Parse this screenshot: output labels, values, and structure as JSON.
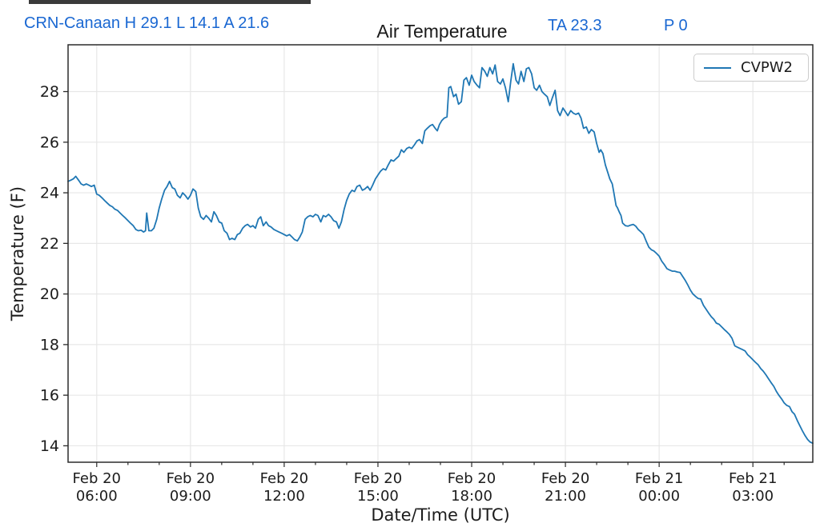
{
  "annotations": {
    "station_summary": "CRN-Canaan H 29.1 L 14.1 A 21.6",
    "ta": "TA 23.3",
    "p": "P 0"
  },
  "colors": {
    "line": "#1f77b4",
    "annotation_blue": "#1967d2",
    "grid": "#e7e7e7",
    "spine": "#2b2b2b",
    "text": "#1c1c1c"
  },
  "chart_data": {
    "type": "line",
    "title": "Air Temperature",
    "xlabel": "Date/Time (UTC)",
    "ylabel": "Temperature (F)",
    "grid": true,
    "legend_position": "upper right",
    "legend": [
      {
        "name": "CVPW2",
        "color": "#1f77b4"
      }
    ],
    "stats": {
      "station": "CRN-Canaan",
      "high_f": 29.1,
      "low_f": 14.1,
      "avg_f": 21.6,
      "ta_f": 23.3,
      "p": 0
    },
    "x_unit": "hours since Feb 20 00:00 UTC",
    "xlim": [
      5.083,
      28.917
    ],
    "ylim": [
      13.35,
      29.85
    ],
    "y_ticks": [
      14,
      16,
      18,
      20,
      22,
      24,
      26,
      28
    ],
    "x_ticks": [
      {
        "t": 6,
        "label": [
          "Feb 20",
          "06:00"
        ]
      },
      {
        "t": 9,
        "label": [
          "Feb 20",
          "09:00"
        ]
      },
      {
        "t": 12,
        "label": [
          "Feb 20",
          "12:00"
        ]
      },
      {
        "t": 15,
        "label": [
          "Feb 20",
          "15:00"
        ]
      },
      {
        "t": 18,
        "label": [
          "Feb 20",
          "18:00"
        ]
      },
      {
        "t": 21,
        "label": [
          "Feb 20",
          "21:00"
        ]
      },
      {
        "t": 24,
        "label": [
          "Feb 21",
          "00:00"
        ]
      },
      {
        "t": 27,
        "label": [
          "Feb 21",
          "03:00"
        ]
      }
    ],
    "x_minor_every_hours": 1,
    "series": [
      {
        "name": "CVPW2",
        "color": "#1f77b4",
        "points": [
          [
            5.083,
            24.45
          ],
          [
            5.17,
            24.5
          ],
          [
            5.25,
            24.55
          ],
          [
            5.33,
            24.65
          ],
          [
            5.42,
            24.5
          ],
          [
            5.5,
            24.35
          ],
          [
            5.58,
            24.3
          ],
          [
            5.67,
            24.35
          ],
          [
            5.75,
            24.3
          ],
          [
            5.83,
            24.25
          ],
          [
            5.92,
            24.3
          ],
          [
            6.0,
            23.95
          ],
          [
            6.08,
            23.9
          ],
          [
            6.17,
            23.8
          ],
          [
            6.25,
            23.7
          ],
          [
            6.33,
            23.6
          ],
          [
            6.42,
            23.5
          ],
          [
            6.5,
            23.45
          ],
          [
            6.58,
            23.35
          ],
          [
            6.67,
            23.3
          ],
          [
            6.75,
            23.2
          ],
          [
            6.83,
            23.1
          ],
          [
            6.92,
            23.0
          ],
          [
            7.0,
            22.9
          ],
          [
            7.08,
            22.8
          ],
          [
            7.17,
            22.7
          ],
          [
            7.25,
            22.55
          ],
          [
            7.33,
            22.5
          ],
          [
            7.42,
            22.52
          ],
          [
            7.5,
            22.45
          ],
          [
            7.56,
            22.5
          ],
          [
            7.6,
            23.2
          ],
          [
            7.67,
            22.5
          ],
          [
            7.75,
            22.5
          ],
          [
            7.83,
            22.6
          ],
          [
            7.92,
            22.95
          ],
          [
            8.0,
            23.4
          ],
          [
            8.08,
            23.75
          ],
          [
            8.17,
            24.1
          ],
          [
            8.25,
            24.25
          ],
          [
            8.33,
            24.45
          ],
          [
            8.42,
            24.2
          ],
          [
            8.5,
            24.15
          ],
          [
            8.58,
            23.9
          ],
          [
            8.67,
            23.8
          ],
          [
            8.75,
            24.0
          ],
          [
            8.83,
            23.9
          ],
          [
            8.92,
            23.75
          ],
          [
            9.0,
            23.9
          ],
          [
            9.08,
            24.15
          ],
          [
            9.17,
            24.05
          ],
          [
            9.25,
            23.4
          ],
          [
            9.33,
            23.05
          ],
          [
            9.42,
            22.95
          ],
          [
            9.5,
            23.1
          ],
          [
            9.58,
            23.0
          ],
          [
            9.67,
            22.85
          ],
          [
            9.75,
            23.25
          ],
          [
            9.83,
            23.1
          ],
          [
            9.92,
            22.85
          ],
          [
            10.0,
            22.8
          ],
          [
            10.08,
            22.5
          ],
          [
            10.17,
            22.4
          ],
          [
            10.25,
            22.15
          ],
          [
            10.33,
            22.2
          ],
          [
            10.42,
            22.15
          ],
          [
            10.5,
            22.35
          ],
          [
            10.58,
            22.4
          ],
          [
            10.67,
            22.6
          ],
          [
            10.75,
            22.7
          ],
          [
            10.83,
            22.75
          ],
          [
            10.92,
            22.65
          ],
          [
            11.0,
            22.7
          ],
          [
            11.08,
            22.6
          ],
          [
            11.17,
            22.95
          ],
          [
            11.25,
            23.05
          ],
          [
            11.33,
            22.7
          ],
          [
            11.42,
            22.85
          ],
          [
            11.5,
            22.7
          ],
          [
            11.58,
            22.65
          ],
          [
            11.67,
            22.55
          ],
          [
            11.75,
            22.5
          ],
          [
            11.83,
            22.45
          ],
          [
            11.92,
            22.4
          ],
          [
            12.0,
            22.35
          ],
          [
            12.08,
            22.3
          ],
          [
            12.17,
            22.35
          ],
          [
            12.25,
            22.25
          ],
          [
            12.33,
            22.15
          ],
          [
            12.42,
            22.1
          ],
          [
            12.5,
            22.25
          ],
          [
            12.58,
            22.45
          ],
          [
            12.67,
            22.95
          ],
          [
            12.75,
            23.05
          ],
          [
            12.83,
            23.1
          ],
          [
            12.92,
            23.05
          ],
          [
            13.0,
            23.15
          ],
          [
            13.08,
            23.1
          ],
          [
            13.17,
            22.85
          ],
          [
            13.25,
            23.1
          ],
          [
            13.33,
            23.05
          ],
          [
            13.42,
            23.15
          ],
          [
            13.5,
            23.05
          ],
          [
            13.58,
            22.9
          ],
          [
            13.67,
            22.85
          ],
          [
            13.75,
            22.6
          ],
          [
            13.83,
            22.85
          ],
          [
            13.92,
            23.35
          ],
          [
            14.0,
            23.7
          ],
          [
            14.08,
            23.95
          ],
          [
            14.17,
            24.1
          ],
          [
            14.25,
            24.05
          ],
          [
            14.33,
            24.25
          ],
          [
            14.42,
            24.3
          ],
          [
            14.5,
            24.1
          ],
          [
            14.58,
            24.15
          ],
          [
            14.67,
            24.25
          ],
          [
            14.75,
            24.1
          ],
          [
            14.83,
            24.3
          ],
          [
            14.92,
            24.55
          ],
          [
            15.0,
            24.7
          ],
          [
            15.08,
            24.85
          ],
          [
            15.17,
            24.95
          ],
          [
            15.25,
            24.9
          ],
          [
            15.33,
            25.1
          ],
          [
            15.42,
            25.3
          ],
          [
            15.5,
            25.25
          ],
          [
            15.58,
            25.35
          ],
          [
            15.67,
            25.45
          ],
          [
            15.75,
            25.7
          ],
          [
            15.83,
            25.6
          ],
          [
            15.92,
            25.75
          ],
          [
            16.0,
            25.8
          ],
          [
            16.08,
            25.75
          ],
          [
            16.17,
            25.9
          ],
          [
            16.25,
            26.05
          ],
          [
            16.33,
            26.1
          ],
          [
            16.42,
            25.95
          ],
          [
            16.5,
            26.45
          ],
          [
            16.58,
            26.55
          ],
          [
            16.67,
            26.65
          ],
          [
            16.75,
            26.7
          ],
          [
            16.83,
            26.55
          ],
          [
            16.9,
            26.45
          ],
          [
            16.97,
            26.7
          ],
          [
            17.04,
            26.85
          ],
          [
            17.12,
            26.95
          ],
          [
            17.21,
            27.0
          ],
          [
            17.27,
            28.15
          ],
          [
            17.33,
            28.2
          ],
          [
            17.42,
            27.8
          ],
          [
            17.5,
            27.9
          ],
          [
            17.58,
            27.5
          ],
          [
            17.67,
            27.6
          ],
          [
            17.75,
            28.45
          ],
          [
            17.83,
            28.55
          ],
          [
            17.92,
            28.25
          ],
          [
            18.0,
            28.65
          ],
          [
            18.08,
            28.4
          ],
          [
            18.17,
            28.25
          ],
          [
            18.25,
            28.15
          ],
          [
            18.33,
            28.95
          ],
          [
            18.42,
            28.8
          ],
          [
            18.5,
            28.6
          ],
          [
            18.58,
            28.95
          ],
          [
            18.67,
            28.7
          ],
          [
            18.75,
            29.05
          ],
          [
            18.83,
            28.4
          ],
          [
            18.92,
            28.3
          ],
          [
            19.0,
            28.5
          ],
          [
            19.08,
            28.15
          ],
          [
            19.17,
            27.6
          ],
          [
            19.25,
            28.4
          ],
          [
            19.33,
            29.1
          ],
          [
            19.42,
            28.45
          ],
          [
            19.5,
            28.3
          ],
          [
            19.58,
            28.8
          ],
          [
            19.67,
            28.4
          ],
          [
            19.75,
            28.9
          ],
          [
            19.83,
            28.95
          ],
          [
            19.92,
            28.7
          ],
          [
            20.0,
            28.15
          ],
          [
            20.08,
            28.05
          ],
          [
            20.17,
            28.25
          ],
          [
            20.25,
            28.0
          ],
          [
            20.33,
            27.9
          ],
          [
            20.42,
            27.8
          ],
          [
            20.5,
            27.45
          ],
          [
            20.58,
            27.75
          ],
          [
            20.67,
            28.05
          ],
          [
            20.75,
            27.25
          ],
          [
            20.83,
            27.05
          ],
          [
            20.92,
            27.35
          ],
          [
            21.0,
            27.2
          ],
          [
            21.08,
            27.05
          ],
          [
            21.17,
            27.25
          ],
          [
            21.25,
            27.15
          ],
          [
            21.33,
            27.1
          ],
          [
            21.42,
            27.15
          ],
          [
            21.5,
            26.95
          ],
          [
            21.58,
            26.55
          ],
          [
            21.67,
            26.6
          ],
          [
            21.75,
            26.35
          ],
          [
            21.83,
            26.5
          ],
          [
            21.92,
            26.4
          ],
          [
            22.0,
            25.95
          ],
          [
            22.08,
            25.6
          ],
          [
            22.13,
            25.7
          ],
          [
            22.2,
            25.55
          ],
          [
            22.28,
            25.1
          ],
          [
            22.37,
            24.75
          ],
          [
            22.42,
            24.55
          ],
          [
            22.5,
            24.35
          ],
          [
            22.55,
            24.0
          ],
          [
            22.62,
            23.5
          ],
          [
            22.67,
            23.4
          ],
          [
            22.72,
            23.25
          ],
          [
            22.78,
            23.1
          ],
          [
            22.83,
            22.8
          ],
          [
            22.92,
            22.7
          ],
          [
            23.0,
            22.68
          ],
          [
            23.08,
            22.72
          ],
          [
            23.17,
            22.75
          ],
          [
            23.25,
            22.68
          ],
          [
            23.33,
            22.55
          ],
          [
            23.42,
            22.45
          ],
          [
            23.5,
            22.35
          ],
          [
            23.58,
            22.1
          ],
          [
            23.67,
            21.85
          ],
          [
            23.75,
            21.75
          ],
          [
            23.83,
            21.7
          ],
          [
            23.92,
            21.6
          ],
          [
            24.0,
            21.5
          ],
          [
            24.08,
            21.3
          ],
          [
            24.17,
            21.15
          ],
          [
            24.25,
            21.0
          ],
          [
            24.33,
            20.95
          ],
          [
            24.42,
            20.9
          ],
          [
            24.5,
            20.9
          ],
          [
            24.58,
            20.87
          ],
          [
            24.67,
            20.85
          ],
          [
            24.75,
            20.7
          ],
          [
            24.83,
            20.55
          ],
          [
            24.92,
            20.35
          ],
          [
            25.0,
            20.15
          ],
          [
            25.08,
            20.0
          ],
          [
            25.17,
            19.9
          ],
          [
            25.25,
            19.82
          ],
          [
            25.33,
            19.8
          ],
          [
            25.42,
            19.55
          ],
          [
            25.5,
            19.4
          ],
          [
            25.58,
            19.25
          ],
          [
            25.67,
            19.1
          ],
          [
            25.75,
            19.0
          ],
          [
            25.83,
            18.85
          ],
          [
            25.92,
            18.8
          ],
          [
            26.0,
            18.7
          ],
          [
            26.08,
            18.6
          ],
          [
            26.17,
            18.5
          ],
          [
            26.25,
            18.4
          ],
          [
            26.33,
            18.25
          ],
          [
            26.42,
            17.95
          ],
          [
            26.5,
            17.9
          ],
          [
            26.58,
            17.85
          ],
          [
            26.67,
            17.8
          ],
          [
            26.75,
            17.75
          ],
          [
            26.83,
            17.6
          ],
          [
            26.92,
            17.5
          ],
          [
            27.0,
            17.4
          ],
          [
            27.08,
            17.3
          ],
          [
            27.17,
            17.2
          ],
          [
            27.25,
            17.05
          ],
          [
            27.33,
            16.95
          ],
          [
            27.42,
            16.8
          ],
          [
            27.5,
            16.65
          ],
          [
            27.58,
            16.5
          ],
          [
            27.67,
            16.35
          ],
          [
            27.75,
            16.15
          ],
          [
            27.83,
            16.0
          ],
          [
            27.92,
            15.85
          ],
          [
            28.0,
            15.7
          ],
          [
            28.08,
            15.6
          ],
          [
            28.17,
            15.55
          ],
          [
            28.25,
            15.35
          ],
          [
            28.33,
            15.25
          ],
          [
            28.42,
            15.0
          ],
          [
            28.5,
            14.8
          ],
          [
            28.58,
            14.6
          ],
          [
            28.67,
            14.4
          ],
          [
            28.75,
            14.25
          ],
          [
            28.83,
            14.15
          ],
          [
            28.917,
            14.1
          ]
        ]
      }
    ]
  }
}
